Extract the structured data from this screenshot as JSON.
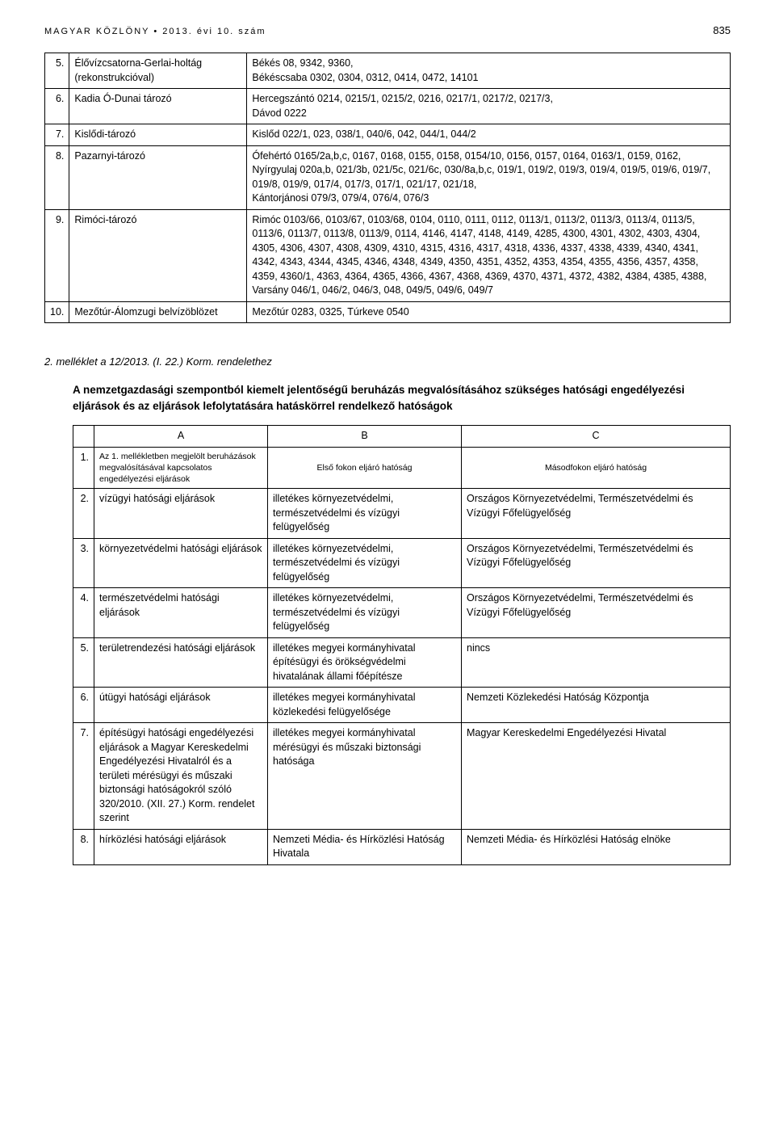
{
  "header": {
    "left": "MAGYAR KÖZLÖNY • 2013. évi 10. szám",
    "pageNumber": "835"
  },
  "table1": {
    "rows": [
      {
        "num": "5.",
        "name": "Élővízcsatorna-Gerlai-holtág (rekonstrukcióval)",
        "desc": "Békés 08, 9342, 9360,\nBékéscsaba 0302, 0304, 0312, 0414, 0472, 14101"
      },
      {
        "num": "6.",
        "name": "Kadia Ó-Dunai tározó",
        "desc": "Hercegszántó 0214, 0215/1, 0215/2, 0216, 0217/1, 0217/2, 0217/3,\nDávod 0222"
      },
      {
        "num": "7.",
        "name": "Kislődi-tározó",
        "desc": "Kislőd 022/1, 023, 038/1, 040/6, 042, 044/1, 044/2"
      },
      {
        "num": "8.",
        "name": "Pazarnyi-tározó",
        "desc": "Ófehértó 0165/2a,b,c, 0167, 0168, 0155, 0158, 0154/10, 0156, 0157, 0164, 0163/1, 0159, 0162,\nNyírgyulaj 020a,b, 021/3b, 021/5c, 021/6c, 030/8a,b,c, 019/1, 019/2, 019/3, 019/4, 019/5, 019/6, 019/7, 019/8, 019/9, 017/4, 017/3, 017/1, 021/17, 021/18,\nKántorjánosi 079/3, 079/4, 076/4, 076/3"
      },
      {
        "num": "9.",
        "name": "Rimóci-tározó",
        "desc": "Rimóc 0103/66, 0103/67, 0103/68, 0104, 0110, 0111, 0112, 0113/1, 0113/2, 0113/3, 0113/4, 0113/5, 0113/6, 0113/7, 0113/8, 0113/9, 0114, 4146, 4147, 4148, 4149, 4285, 4300, 4301, 4302, 4303, 4304, 4305, 4306, 4307, 4308, 4309, 4310, 4315, 4316, 4317, 4318, 4336, 4337, 4338, 4339, 4340, 4341, 4342, 4343, 4344, 4345, 4346, 4348, 4349, 4350, 4351, 4352, 4353, 4354, 4355, 4356, 4357, 4358, 4359, 4360/1, 4363, 4364, 4365, 4366, 4367, 4368, 4369, 4370, 4371, 4372, 4382, 4384, 4385, 4388,\nVarsány 046/1, 046/2, 046/3, 048, 049/5, 049/6, 049/7"
      },
      {
        "num": "10.",
        "name": "Mezőtúr-Álomzugi belvízöblözet",
        "desc": "Mezőtúr 0283, 0325, Túrkeve 0540"
      }
    ]
  },
  "sectionTitle": "2. melléklet a 12/2013. (I. 22.) Korm. rendelethez",
  "attachmentDesc": "A nemzetgazdasági szempontból kiemelt jelentőségű beruházás megvalósításához szükséges hatósági engedélyezési eljárások és az eljárások lefolytatására hatáskörrel rendelkező hatóságok",
  "table2": {
    "headers": {
      "blank": "",
      "a": "A",
      "b": "B",
      "c": "C"
    },
    "row1": {
      "num": "1.",
      "a": "Az 1. mellékletben megjelölt beruházások megvalósításával kapcsolatos engedélyezési eljárások",
      "b": "Első fokon eljáró hatóság",
      "c": "Másodfokon eljáró hatóság"
    },
    "rows": [
      {
        "num": "2.",
        "a": "vízügyi hatósági eljárások",
        "b": "illetékes környezetvédelmi, természetvédelmi és vízügyi felügyelőség",
        "c": "Országos Környezetvédelmi, Természetvédelmi és Vízügyi Főfelügyelőség"
      },
      {
        "num": "3.",
        "a": "környezetvédelmi hatósági eljárások",
        "b": "illetékes környezetvédelmi, természetvédelmi és vízügyi felügyelőség",
        "c": "Országos Környezetvédelmi, Természetvédelmi és Vízügyi Főfelügyelőség"
      },
      {
        "num": "4.",
        "a": "természetvédelmi hatósági eljárások",
        "b": "illetékes környezetvédelmi, természetvédelmi és vízügyi felügyelőség",
        "c": "Országos Környezetvédelmi, Természetvédelmi és Vízügyi Főfelügyelőség"
      },
      {
        "num": "5.",
        "a": "területrendezési hatósági eljárások",
        "b": "illetékes megyei kormányhivatal építésügyi és örökségvédelmi hivatalának állami főépítésze",
        "c": "nincs"
      },
      {
        "num": "6.",
        "a": "útügyi hatósági eljárások",
        "b": "illetékes megyei kormányhivatal közlekedési felügyelősége",
        "c": "Nemzeti Közlekedési Hatóság Központja"
      },
      {
        "num": "7.",
        "a": "építésügyi hatósági engedélyezési eljárások a Magyar Kereskedelmi Engedélyezési Hivatalról és a területi mérésügyi és műszaki biztonsági hatóságokról szóló 320/2010. (XII. 27.) Korm. rendelet szerint",
        "b": "illetékes megyei kormányhivatal mérésügyi és műszaki biztonsági hatósága",
        "c": "Magyar Kereskedelmi Engedélyezési Hivatal"
      },
      {
        "num": "8.",
        "a": "hírközlési hatósági eljárások",
        "b": "Nemzeti Média- és Hírközlési Hatóság Hivatala",
        "c": "Nemzeti Média- és Hírközlési Hatóság elnöke"
      }
    ]
  }
}
